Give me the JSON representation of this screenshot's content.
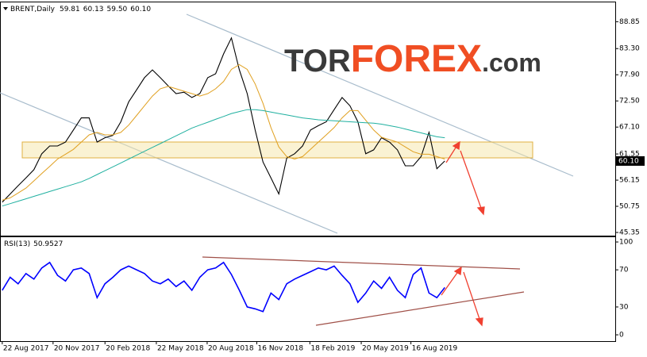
{
  "logo": {
    "tor": "TOR",
    "forex": "FOREX",
    "com": ".com"
  },
  "chart_data": [
    {
      "type": "line",
      "symbol": "BRENT,Daily",
      "ohlc": [
        59.81,
        60.13,
        {
          "value": 59.5,
          "label": "59.50"
        },
        {
          "value": 60.1,
          "label": "60.10"
        }
      ],
      "last_price": {
        "value": 60.1,
        "label": "60.10"
      },
      "x": [
        "2017-08-22",
        "2017-09-05",
        "2017-09-19",
        "2017-10-03",
        "2017-10-17",
        "2017-10-31",
        "2017-11-14",
        "2017-11-28",
        "2017-12-12",
        "2017-12-26",
        "2018-01-09",
        "2018-01-23",
        "2018-02-06",
        "2018-02-20",
        "2018-03-06",
        "2018-03-20",
        "2018-04-03",
        "2018-04-17",
        "2018-05-01",
        "2018-05-15",
        "2018-05-29",
        "2018-06-12",
        "2018-06-26",
        "2018-07-10",
        "2018-07-24",
        "2018-08-07",
        "2018-08-21",
        "2018-09-04",
        "2018-09-18",
        "2018-10-02",
        "2018-10-16",
        "2018-10-30",
        "2018-11-13",
        "2018-11-27",
        "2018-12-11",
        "2018-12-25",
        "2019-01-08",
        "2019-01-22",
        "2019-02-05",
        "2019-02-19",
        "2019-03-05",
        "2019-03-19",
        "2019-04-02",
        "2019-04-16",
        "2019-04-30",
        "2019-05-14",
        "2019-05-28",
        "2019-06-11",
        "2019-06-25",
        "2019-07-09",
        "2019-07-23",
        "2019-08-06",
        "2019-08-20",
        "2019-09-03",
        "2019-09-17",
        "2019-10-01",
        "2019-10-15"
      ],
      "xlim": [
        "2017-08-18",
        "2020-08-12"
      ],
      "ylim": [
        44.7,
        93.0
      ],
      "yticks": [
        88.85,
        {
          "value": 83.3,
          "label": "83.30"
        },
        {
          "value": 77.9,
          "label": "77.90"
        },
        {
          "value": 72.5,
          "label": "72.50"
        },
        {
          "value": 67.1,
          "label": "67.10"
        },
        61.55,
        56.15,
        50.75,
        45.35
      ],
      "series": [
        {
          "color": "#000000",
          "values": [
            51.6,
            53.3,
            55.0,
            56.6,
            58.3,
            61.6,
            63.2,
            63.2,
            64.0,
            66.5,
            69.0,
            69.0,
            64.0,
            64.9,
            65.4,
            68.2,
            72.3,
            74.8,
            77.3,
            78.9,
            77.3,
            75.6,
            74.0,
            74.3,
            73.2,
            74.0,
            77.3,
            78.1,
            82.2,
            85.5,
            78.9,
            74.0,
            66.5,
            59.9,
            56.6,
            53.3,
            60.7,
            61.6,
            63.2,
            66.5,
            67.4,
            68.2,
            70.7,
            73.2,
            71.5,
            68.2,
            61.6,
            62.4,
            64.9,
            64.0,
            62.4,
            59.1,
            59.1,
            61.0,
            66.0,
            58.5,
            60.1
          ]
        },
        {
          "color": "#e0a020",
          "values": [
            52,
            52.5,
            53.5,
            54.5,
            56,
            57.5,
            59,
            60.5,
            61.5,
            62.5,
            64,
            65.5,
            66,
            65.5,
            65.5,
            66,
            67.5,
            69.5,
            71.5,
            73.5,
            75,
            75.5,
            75,
            74.5,
            74,
            73.5,
            74,
            75,
            76.5,
            79,
            80,
            79,
            76,
            72,
            67,
            63,
            61,
            60.5,
            61,
            62.5,
            64,
            65.5,
            67,
            69,
            70.5,
            70.5,
            68.5,
            66.5,
            65,
            64.5,
            64,
            63,
            62,
            61.5,
            61.5,
            61,
            60.5
          ]
        },
        {
          "color": "#20b0a0",
          "values": [
            50.8,
            51.3,
            51.8,
            52.3,
            52.8,
            53.3,
            53.8,
            54.3,
            54.8,
            55.3,
            55.8,
            56.5,
            57.3,
            58.1,
            58.9,
            59.7,
            60.5,
            61.3,
            62.1,
            62.9,
            63.7,
            64.5,
            65.3,
            66.1,
            66.9,
            67.5,
            68.1,
            68.7,
            69.3,
            69.9,
            70.3,
            70.7,
            70.7,
            70.5,
            70.2,
            69.9,
            69.6,
            69.3,
            69.0,
            68.8,
            68.6,
            68.5,
            68.4,
            68.3,
            68.2,
            68.1,
            68.0,
            67.9,
            67.7,
            67.4,
            67.1,
            66.7,
            66.3,
            65.9,
            65.5,
            65.1,
            64.9
          ]
        }
      ]
    },
    {
      "type": "line",
      "indicator": "RSI(13)",
      "last_value": 50.9527,
      "x": [
        "2017-08-22",
        "2017-09-05",
        "2017-09-19",
        "2017-10-03",
        "2017-10-17",
        "2017-10-31",
        "2017-11-14",
        "2017-11-28",
        "2017-12-12",
        "2017-12-26",
        "2018-01-09",
        "2018-01-23",
        "2018-02-06",
        "2018-02-20",
        "2018-03-06",
        "2018-03-20",
        "2018-04-03",
        "2018-04-17",
        "2018-05-01",
        "2018-05-15",
        "2018-05-29",
        "2018-06-12",
        "2018-06-26",
        "2018-07-10",
        "2018-07-24",
        "2018-08-07",
        "2018-08-21",
        "2018-09-04",
        "2018-09-18",
        "2018-10-02",
        "2018-10-16",
        "2018-10-30",
        "2018-11-13",
        "2018-11-27",
        "2018-12-11",
        "2018-12-25",
        "2019-01-08",
        "2019-01-22",
        "2019-02-05",
        "2019-02-19",
        "2019-03-05",
        "2019-03-19",
        "2019-04-02",
        "2019-04-16",
        "2019-04-30",
        "2019-05-14",
        "2019-05-28",
        "2019-06-11",
        "2019-06-25",
        "2019-07-09",
        "2019-07-23",
        "2019-08-06",
        "2019-08-20",
        "2019-09-03",
        "2019-09-17",
        "2019-10-01",
        "2019-10-15"
      ],
      "xlim": [
        "2017-08-18",
        "2020-08-12"
      ],
      "xticks": [
        {
          "value": "2017-08-22",
          "label": "22 Aug 2017"
        },
        {
          "value": "2017-11-20",
          "label": "20 Nov 2017"
        },
        {
          "value": "2018-02-20",
          "label": "20 Feb 2018"
        },
        {
          "value": "2018-05-22",
          "label": "22 May 2018"
        },
        {
          "value": "2018-08-20",
          "label": "20 Aug 2018"
        },
        {
          "value": "2018-11-16",
          "label": "16 Nov 2018"
        },
        {
          "value": "2019-02-18",
          "label": "18 Feb 2019"
        },
        {
          "value": "2019-05-20",
          "label": "20 May 2019"
        },
        {
          "value": "2019-08-16",
          "label": "16 Aug 2019"
        }
      ],
      "ylim": [
        -6.8,
        106
      ],
      "yticks": [
        100,
        70,
        30,
        0
      ],
      "series": [
        {
          "color": "#0000ff",
          "values": [
            48,
            62,
            55,
            66,
            60,
            72,
            78,
            64,
            58,
            70,
            72,
            66,
            40,
            55,
            62,
            70,
            74,
            70,
            66,
            58,
            55,
            60,
            52,
            58,
            48,
            62,
            70,
            72,
            78,
            65,
            48,
            30,
            28,
            25,
            45,
            38,
            55,
            60,
            64,
            68,
            72,
            70,
            74,
            64,
            55,
            35,
            45,
            58,
            50,
            62,
            48,
            40,
            65,
            72,
            45,
            40,
            50.9527
          ]
        }
      ]
    }
  ]
}
